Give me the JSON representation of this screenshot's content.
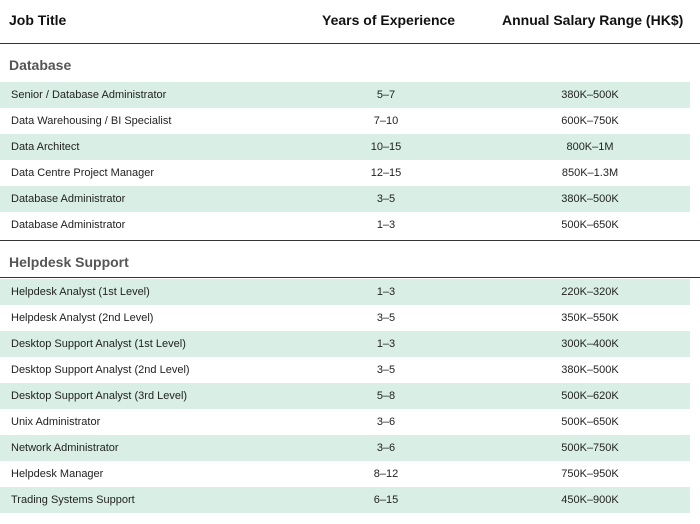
{
  "header": {
    "job_title": "Job Title",
    "experience": "Years of Experience",
    "salary": "Annual Salary Range (HK$)"
  },
  "colors": {
    "row_shade": "#d9efe6",
    "rule": "#333333"
  },
  "sections": [
    {
      "title": "Database",
      "rows": [
        {
          "title": "Senior / Database Administrator",
          "experience": "5–7",
          "salary": "380K–500K"
        },
        {
          "title": "Data Warehousing / BI Specialist",
          "experience": "7–10",
          "salary": "600K–750K"
        },
        {
          "title": "Data Architect",
          "experience": "10–15",
          "salary": "800K–1M"
        },
        {
          "title": "Data Centre Project Manager",
          "experience": "12–15",
          "salary": "850K–1.3M"
        },
        {
          "title": "Database Administrator",
          "experience": "3–5",
          "salary": "380K–500K"
        },
        {
          "title": "Database Administrator",
          "experience": "1–3",
          "salary": "500K–650K"
        }
      ]
    },
    {
      "title": "Helpdesk Support",
      "rows": [
        {
          "title": "Helpdesk Analyst (1st Level)",
          "experience": "1–3",
          "salary": "220K–320K"
        },
        {
          "title": "Helpdesk Analyst (2nd Level)",
          "experience": "3–5",
          "salary": "350K–550K"
        },
        {
          "title": "Desktop Support Analyst (1st Level)",
          "experience": "1–3",
          "salary": "300K–400K"
        },
        {
          "title": "Desktop Support Analyst (2nd Level)",
          "experience": "3–5",
          "salary": "380K–500K"
        },
        {
          "title": "Desktop Support Analyst (3rd Level)",
          "experience": "5–8",
          "salary": "500K–620K"
        },
        {
          "title": "Unix Administrator",
          "experience": "3–6",
          "salary": "500K–650K"
        },
        {
          "title": "Network Administrator",
          "experience": "3–6",
          "salary": "500K–750K"
        },
        {
          "title": "Helpdesk Manager",
          "experience": "8–12",
          "salary": "750K–950K"
        },
        {
          "title": "Trading Systems Support",
          "experience": "6–15",
          "salary": "450K–900K"
        }
      ]
    }
  ]
}
